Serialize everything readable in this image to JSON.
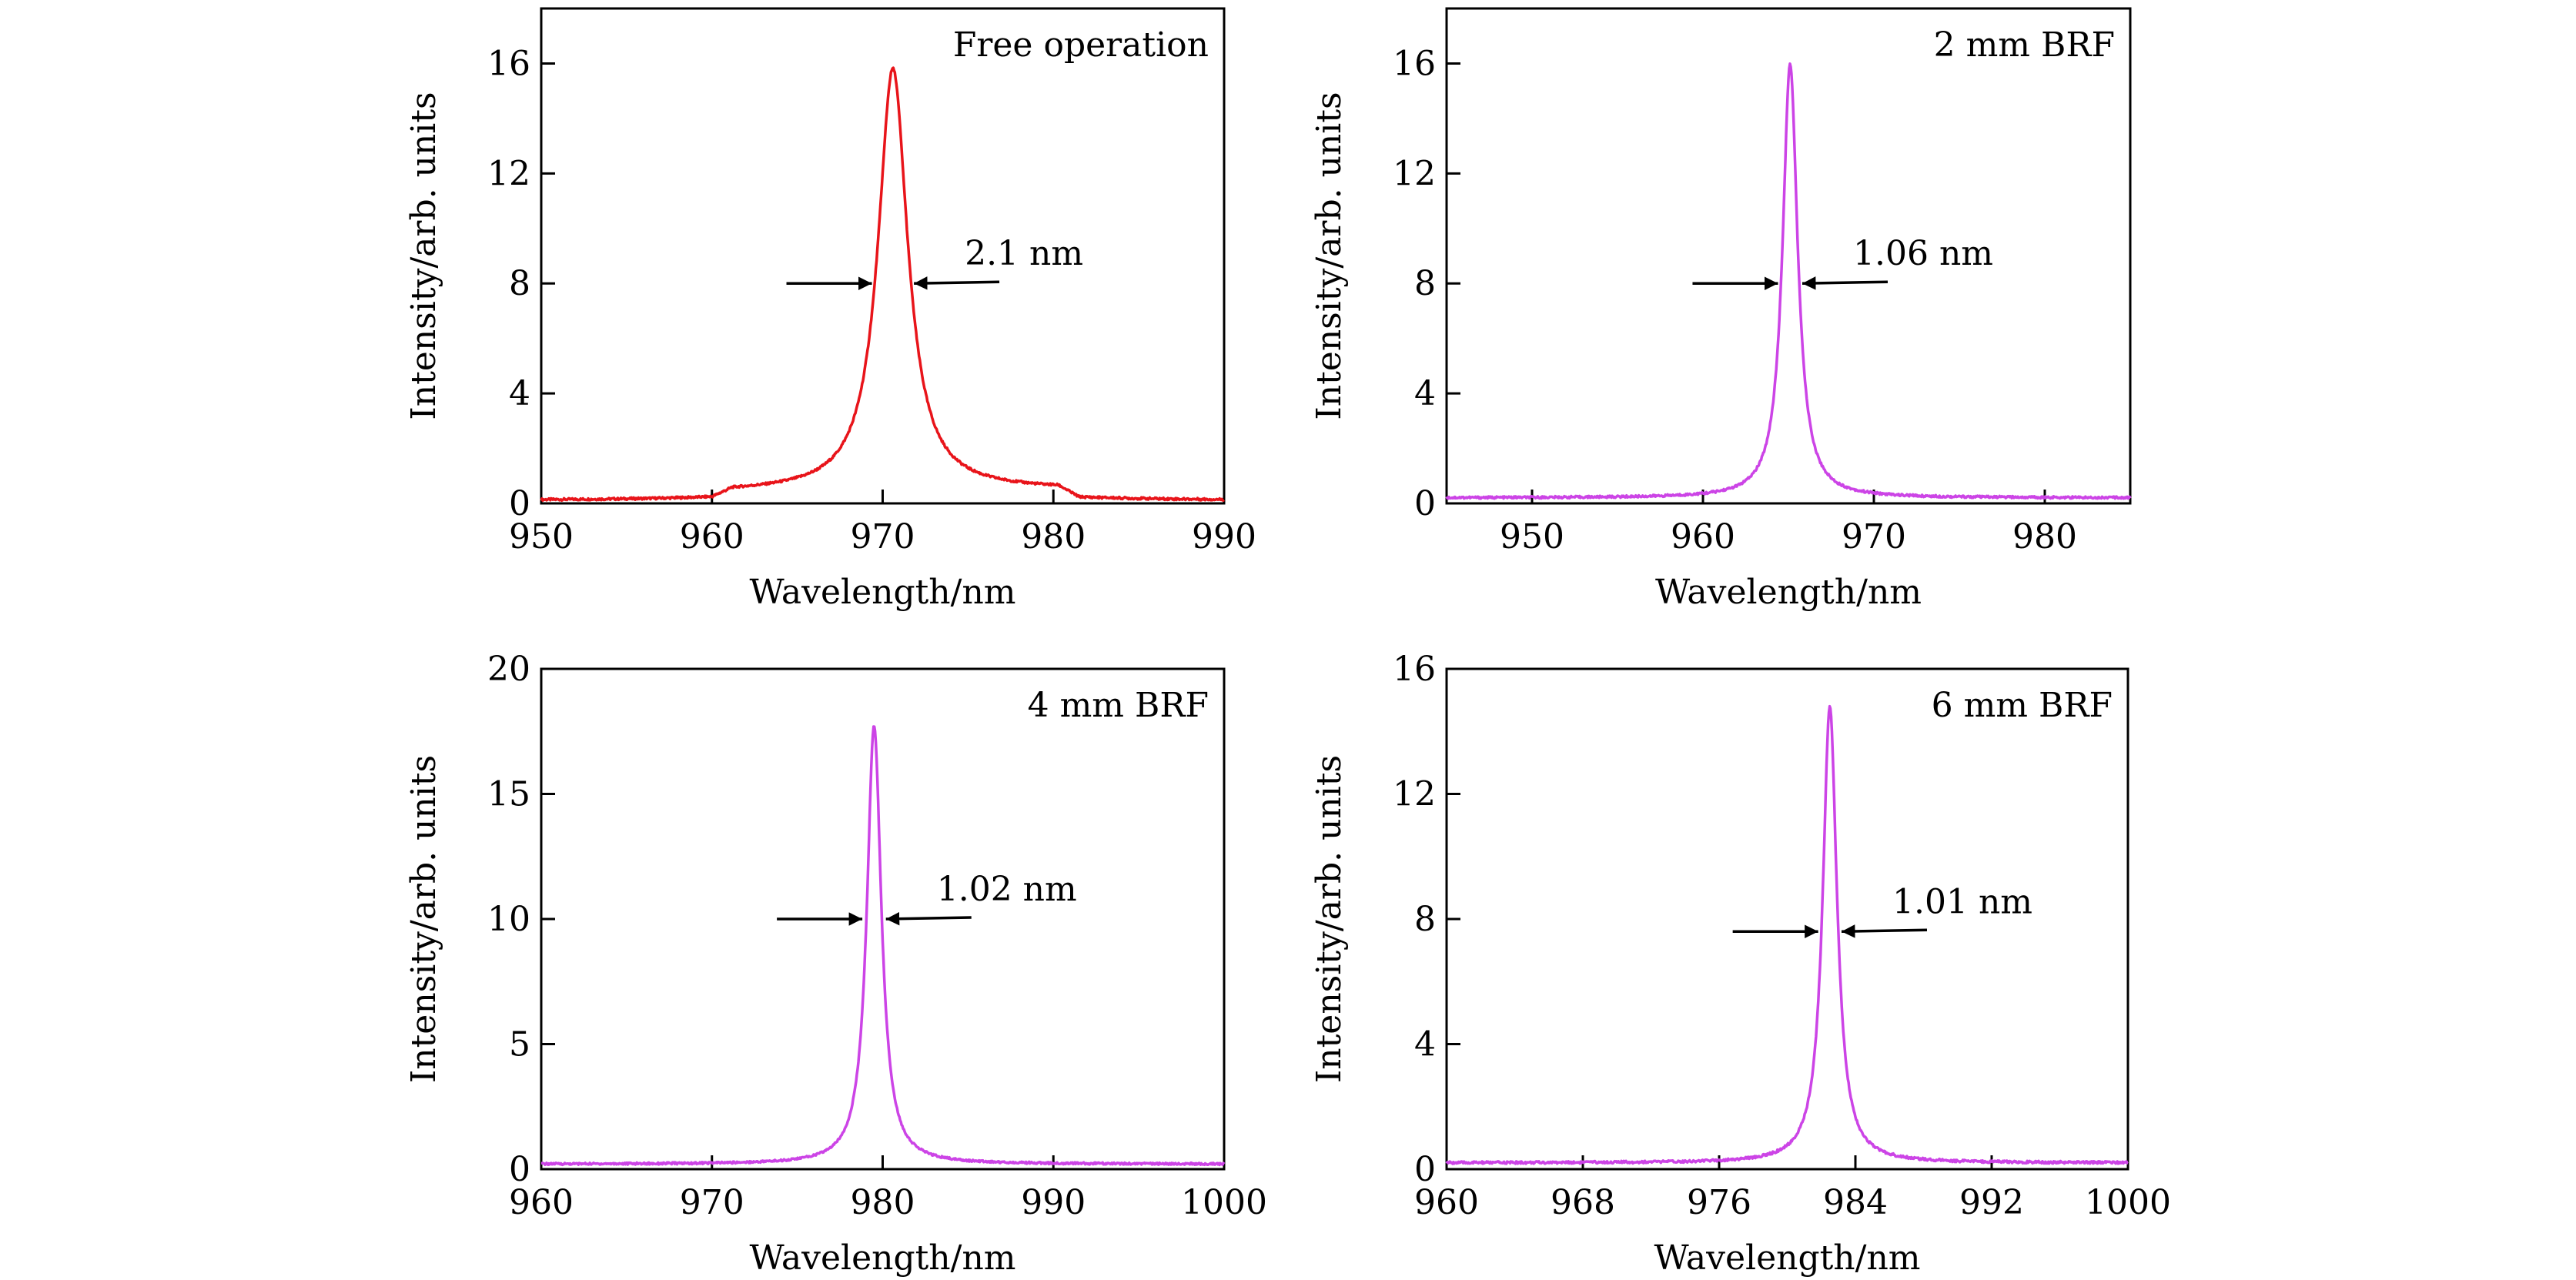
{
  "chart_data": [
    {
      "type": "line",
      "title": "Free operation",
      "xlabel": "Wavelength/nm",
      "ylabel": "Intensity/arb. units",
      "xlim": [
        950,
        990
      ],
      "ylim": [
        0,
        18
      ],
      "xticks": [
        950,
        960,
        970,
        980,
        990
      ],
      "yticks": [
        0,
        4,
        8,
        12,
        16
      ],
      "color": "#e8141a",
      "peak": {
        "center": 970.6,
        "height": 15.6,
        "fwhm": 2.1
      },
      "pedestal": {
        "from": 960,
        "to": 981.5,
        "level_left": 0.3,
        "level_right": 0.4
      },
      "baseline": 0.1,
      "annotation": {
        "text": "2.1 nm",
        "y": 8
      },
      "grid": false
    },
    {
      "type": "line",
      "title": "2 mm BRF",
      "xlabel": "Wavelength/nm",
      "ylabel": "Intensity/arb. units",
      "xlim": [
        945,
        985
      ],
      "ylim": [
        0,
        18
      ],
      "xticks": [
        950,
        960,
        970,
        980
      ],
      "yticks": [
        0,
        4,
        8,
        12,
        16
      ],
      "color": "#cc44e6",
      "peak": {
        "center": 965.1,
        "height": 16.0,
        "fwhm": 1.06
      },
      "baseline": 0.2,
      "annotation": {
        "text": "1.06 nm",
        "y": 8
      },
      "grid": false
    },
    {
      "type": "line",
      "title": "4 mm BRF",
      "xlabel": "Wavelength/nm",
      "ylabel": "Intensity/arb. units",
      "xlim": [
        960,
        1000
      ],
      "ylim": [
        0,
        20
      ],
      "xticks": [
        960,
        970,
        980,
        990,
        1000
      ],
      "yticks": [
        0,
        5,
        10,
        15,
        20
      ],
      "color": "#cc44e6",
      "peak": {
        "center": 979.5,
        "height": 17.8,
        "fwhm": 1.02
      },
      "baseline": 0.2,
      "annotation": {
        "text": "1.02 nm",
        "y": 10
      },
      "grid": false
    },
    {
      "type": "line",
      "title": "6 mm BRF",
      "xlabel": "Wavelength/nm",
      "ylabel": "Intensity/arb. units",
      "xlim": [
        960,
        1000
      ],
      "ylim": [
        0,
        16
      ],
      "xticks": [
        960,
        968,
        976,
        984,
        992,
        1000
      ],
      "yticks": [
        0,
        4,
        8,
        12,
        16
      ],
      "color": "#cc44e6",
      "peak": {
        "center": 982.5,
        "height": 14.8,
        "fwhm": 1.01
      },
      "baseline": 0.2,
      "annotation": {
        "text": "1.01 nm",
        "y": 7.6
      },
      "grid": false
    }
  ]
}
